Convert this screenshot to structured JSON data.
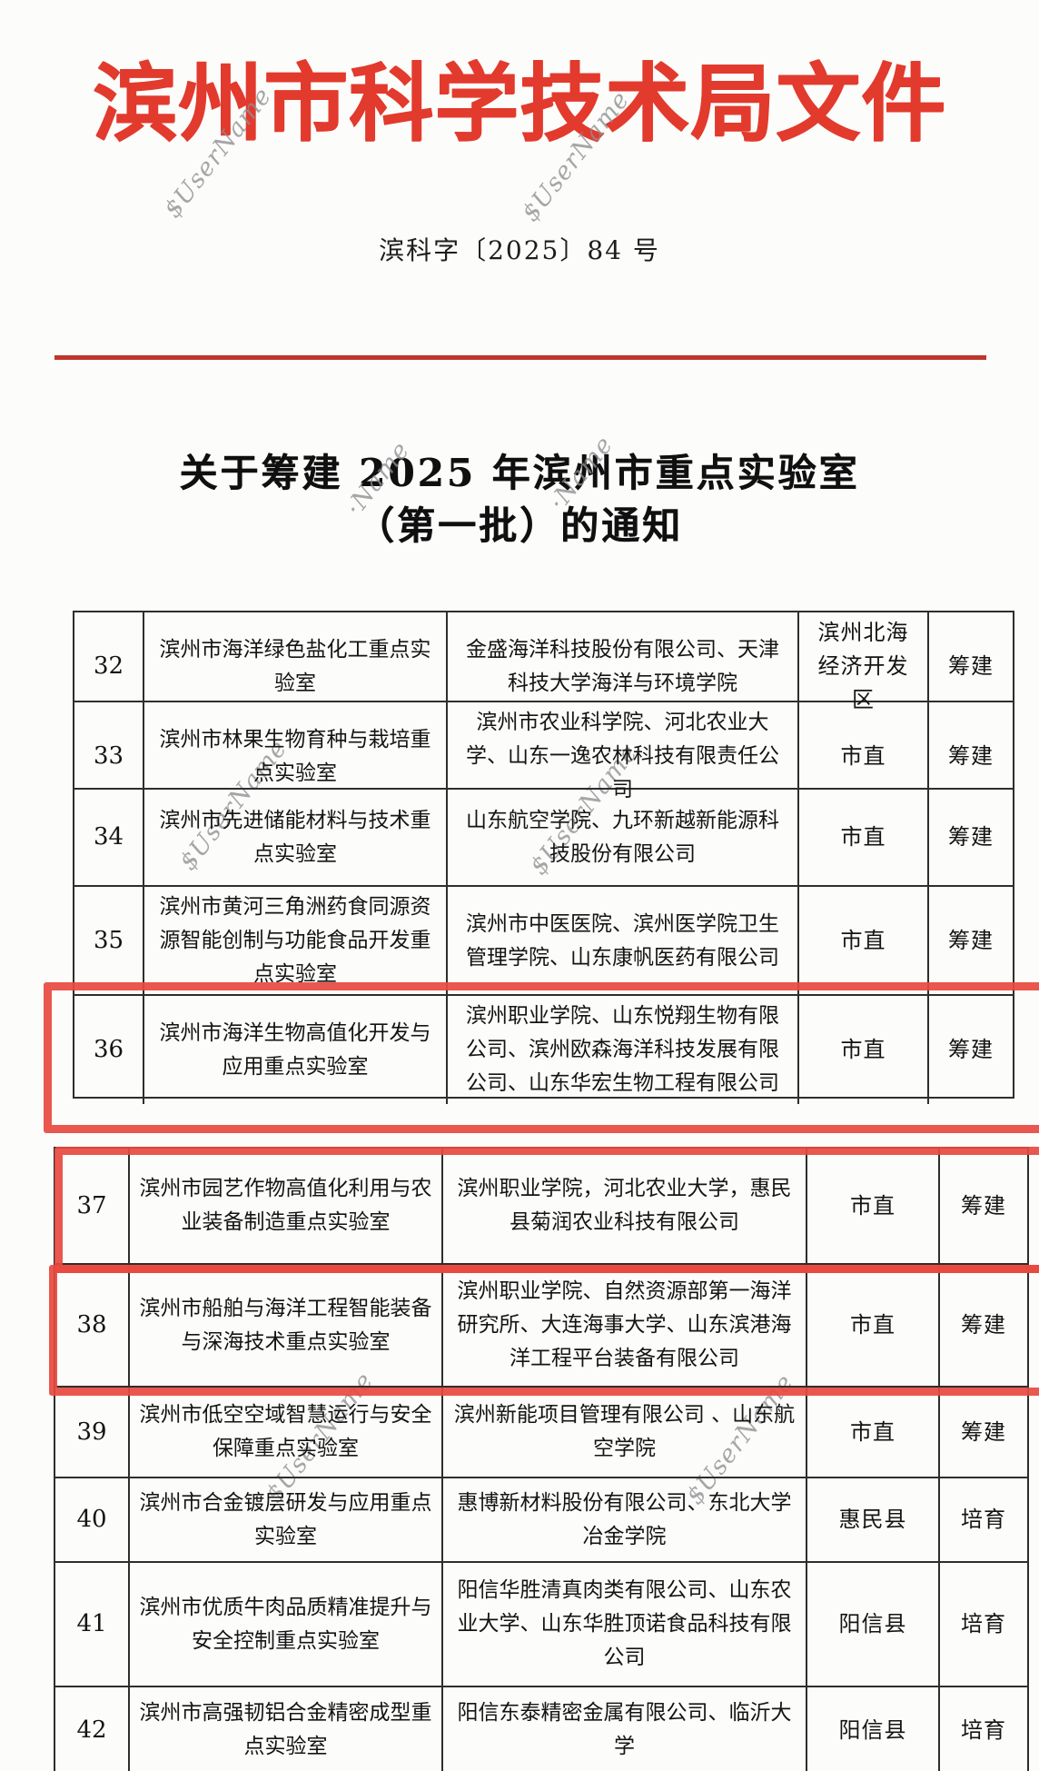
{
  "header": {
    "agency_title": "滨州市科学技术局文件",
    "title_color": "#e23a2d",
    "rule_color": "#c0352a"
  },
  "doc_number": "滨科字〔2025〕84 号",
  "title": {
    "line1": "关于筹建 2025 年滨州市重点实验室",
    "line2": "（第一批）的通知"
  },
  "watermark": {
    "full": "$UserName",
    "partial": "·Name"
  },
  "highlight": {
    "color": "#e7493f",
    "highlighted_rows": [
      "36",
      "37",
      "38"
    ]
  },
  "table": {
    "rows": [
      {
        "no": "32",
        "lab": "滨州市海洋绿色盐化工重点实验室",
        "orgs": "金盛海洋科技股份有限公司、天津科技大学海洋与环境学院",
        "region": "滨州北海经济开发区",
        "status": "筹建"
      },
      {
        "no": "33",
        "lab": "滨州市林果生物育种与栽培重点实验室",
        "orgs": "滨州市农业科学院、河北农业大学、山东一逸农林科技有限责任公司",
        "region": "市直",
        "status": "筹建"
      },
      {
        "no": "34",
        "lab": "滨州市先进储能材料与技术重点实验室",
        "orgs": "山东航空学院、九环新越新能源科技股份有限公司",
        "region": "市直",
        "status": "筹建"
      },
      {
        "no": "35",
        "lab": "滨州市黄河三角洲药食同源资源智能创制与功能食品开发重点实验室",
        "orgs": "滨州市中医医院、滨州医学院卫生管理学院、山东康帆医药有限公司",
        "region": "市直",
        "status": "筹建"
      },
      {
        "no": "36",
        "lab": "滨州市海洋生物高值化开发与应用重点实验室",
        "orgs": "滨州职业学院、山东悦翔生物有限公司、滨州欧森海洋科技发展有限公司、山东华宏生物工程有限公司",
        "region": "市直",
        "status": "筹建"
      },
      {
        "no": "37",
        "lab": "滨州市园艺作物高值化利用与农业装备制造重点实验室",
        "orgs": "滨州职业学院，河北农业大学，惠民县菊润农业科技有限公司",
        "region": "市直",
        "status": "筹建"
      },
      {
        "no": "38",
        "lab": "滨州市船舶与海洋工程智能装备与深海技术重点实验室",
        "orgs": "滨州职业学院、自然资源部第一海洋研究所、大连海事大学、山东滨港海洋工程平台装备有限公司",
        "region": "市直",
        "status": "筹建"
      },
      {
        "no": "39",
        "lab": "滨州市低空空域智慧运行与安全保障重点实验室",
        "orgs": "滨州新能项目管理有限公司 、山东航空学院",
        "region": "市直",
        "status": "筹建"
      },
      {
        "no": "40",
        "lab": "滨州市合金镀层研发与应用重点实验室",
        "orgs": "惠博新材料股份有限公司、东北大学冶金学院",
        "region": "惠民县",
        "status": "培育"
      },
      {
        "no": "41",
        "lab": "滨州市优质牛肉品质精准提升与安全控制重点实验室",
        "orgs": "阳信华胜清真肉类有限公司、山东农业大学、山东华胜顶诺食品科技有限公司",
        "region": "阳信县",
        "status": "培育"
      },
      {
        "no": "42",
        "lab": "滨州市高强韧铝合金精密成型重点实验室",
        "orgs": "阳信东泰精密金属有限公司、临沂大学",
        "region": "阳信县",
        "status": "培育"
      }
    ]
  }
}
